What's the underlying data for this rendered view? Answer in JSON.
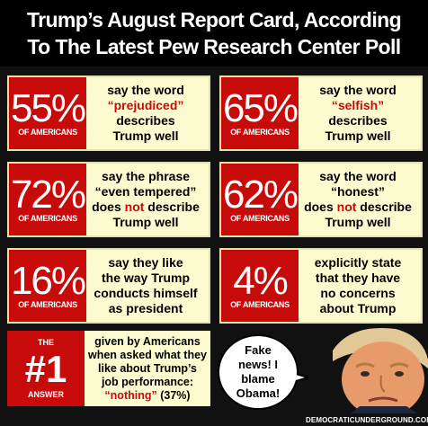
{
  "title": {
    "line1": "Trump’s August Report Card, According",
    "line2": "To The Latest Pew Research Center Poll"
  },
  "cards": [
    {
      "percent": "55%",
      "sublabel": "OF AMERICANS",
      "line1": "say the word",
      "line2_red": "“prejudiced”",
      "line3": "describes",
      "line4": "Trump well"
    },
    {
      "percent": "65%",
      "sublabel": "OF AMERICANS",
      "line1": "say the word",
      "line2_red": "“selfish”",
      "line3": "describes",
      "line4": "Trump well"
    },
    {
      "percent": "72%",
      "sublabel": "OF AMERICANS",
      "line1": "say the phrase",
      "line2": "“even tempered”",
      "line3_pre": "does ",
      "line3_red": "not",
      "line3_post": " describe",
      "line4": "Trump well"
    },
    {
      "percent": "62%",
      "sublabel": "OF AMERICANS",
      "line1": "say the word",
      "line2": "“honest”",
      "line3_pre": "does ",
      "line3_red": "not",
      "line3_post": " describe",
      "line4": "Trump well"
    },
    {
      "percent": "16%",
      "sublabel": "OF AMERICANS",
      "line1": "say they like",
      "line2": "the way Trump",
      "line3": "conducts himself",
      "line4": "as president"
    },
    {
      "percent": "4%",
      "sublabel": "OF AMERICANS",
      "line1": "explicitly state",
      "line2": "that they have",
      "line3": "no concerns",
      "line4": "about Trump"
    }
  ],
  "rank": {
    "top": "THE",
    "big": "#1",
    "bottom": "ANSWER",
    "line1": "given by Americans",
    "line2": "when asked what they",
    "line3": "like about Trump’s",
    "line4": "job performance:",
    "line5_red": "“nothing”",
    "line5_post": " (37%)"
  },
  "bubble": {
    "line1": "Fake",
    "line2": "news! I",
    "line3": "blame",
    "line4": "Obama!"
  },
  "footer": "DEMOCRATICUNDERGROUND.COM",
  "colors": {
    "accent_red": "#c70b0b",
    "card_bg": "#fcfbcf",
    "background": "#111111"
  }
}
